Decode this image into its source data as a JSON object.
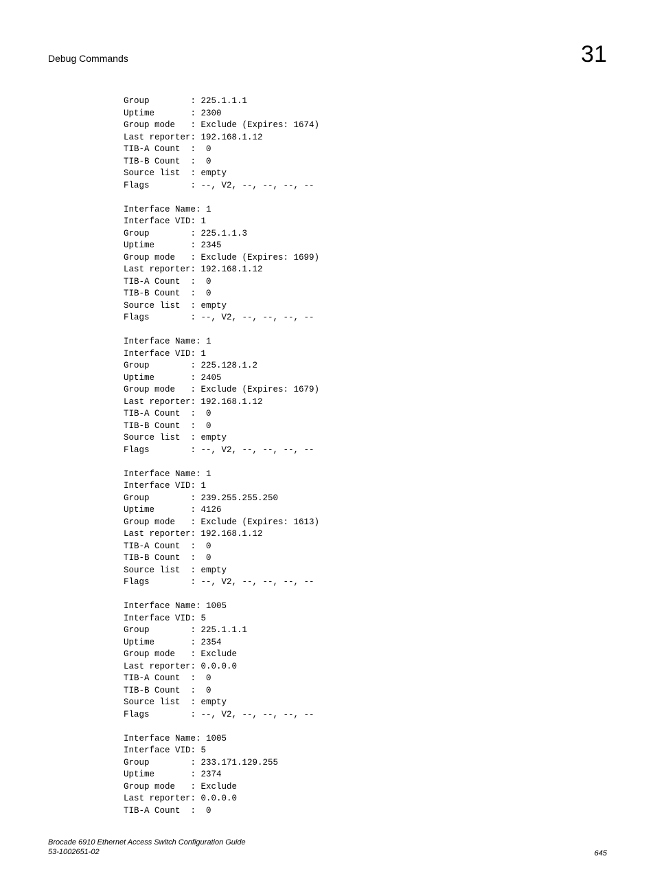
{
  "header": {
    "title": "Debug Commands",
    "chapter": "31"
  },
  "blocks": [
    {
      "rows": [
        [
          "Group",
          "225.1.1.1"
        ],
        [
          "Uptime",
          "2300"
        ],
        [
          "Group mode",
          "Exclude (Expires: 1674)"
        ],
        [
          "Last reporter",
          "192.168.1.12"
        ],
        [
          "TIB-A Count",
          " 0"
        ],
        [
          "TIB-B Count",
          " 0"
        ],
        [
          "Source list",
          "empty"
        ],
        [
          "Flags",
          "--, V2, --, --, --, --"
        ]
      ]
    },
    {
      "rows": [
        [
          "Interface Name",
          "1"
        ],
        [
          "Interface VID",
          "1"
        ],
        [
          "Group",
          "225.1.1.3"
        ],
        [
          "Uptime",
          "2345"
        ],
        [
          "Group mode",
          "Exclude (Expires: 1699)"
        ],
        [
          "Last reporter",
          "192.168.1.12"
        ],
        [
          "TIB-A Count",
          " 0"
        ],
        [
          "TIB-B Count",
          " 0"
        ],
        [
          "Source list",
          "empty"
        ],
        [
          "Flags",
          "--, V2, --, --, --, --"
        ]
      ]
    },
    {
      "rows": [
        [
          "Interface Name",
          "1"
        ],
        [
          "Interface VID",
          "1"
        ],
        [
          "Group",
          "225.128.1.2"
        ],
        [
          "Uptime",
          "2405"
        ],
        [
          "Group mode",
          "Exclude (Expires: 1679)"
        ],
        [
          "Last reporter",
          "192.168.1.12"
        ],
        [
          "TIB-A Count",
          " 0"
        ],
        [
          "TIB-B Count",
          " 0"
        ],
        [
          "Source list",
          "empty"
        ],
        [
          "Flags",
          "--, V2, --, --, --, --"
        ]
      ]
    },
    {
      "rows": [
        [
          "Interface Name",
          "1"
        ],
        [
          "Interface VID",
          "1"
        ],
        [
          "Group",
          "239.255.255.250"
        ],
        [
          "Uptime",
          "4126"
        ],
        [
          "Group mode",
          "Exclude (Expires: 1613)"
        ],
        [
          "Last reporter",
          "192.168.1.12"
        ],
        [
          "TIB-A Count",
          " 0"
        ],
        [
          "TIB-B Count",
          " 0"
        ],
        [
          "Source list",
          "empty"
        ],
        [
          "Flags",
          "--, V2, --, --, --, --"
        ]
      ]
    },
    {
      "rows": [
        [
          "Interface Name",
          "1005"
        ],
        [
          "Interface VID",
          "5"
        ],
        [
          "Group",
          "225.1.1.1"
        ],
        [
          "Uptime",
          "2354"
        ],
        [
          "Group mode",
          "Exclude"
        ],
        [
          "Last reporter",
          "0.0.0.0"
        ],
        [
          "TIB-A Count",
          " 0"
        ],
        [
          "TIB-B Count",
          " 0"
        ],
        [
          "Source list",
          "empty"
        ],
        [
          "Flags",
          "--, V2, --, --, --, --"
        ]
      ]
    },
    {
      "rows": [
        [
          "Interface Name",
          "1005"
        ],
        [
          "Interface VID",
          "5"
        ],
        [
          "Group",
          "233.171.129.255"
        ],
        [
          "Uptime",
          "2374"
        ],
        [
          "Group mode",
          "Exclude"
        ],
        [
          "Last reporter",
          "0.0.0.0"
        ],
        [
          "TIB-A Count",
          " 0"
        ]
      ]
    }
  ],
  "footer": {
    "line1": "Brocade 6910 Ethernet Access Switch Configuration Guide",
    "line2": "53-1002651-02",
    "page": "645"
  },
  "format": {
    "label_width": 14,
    "separator": ":",
    "first_block_special": true
  }
}
